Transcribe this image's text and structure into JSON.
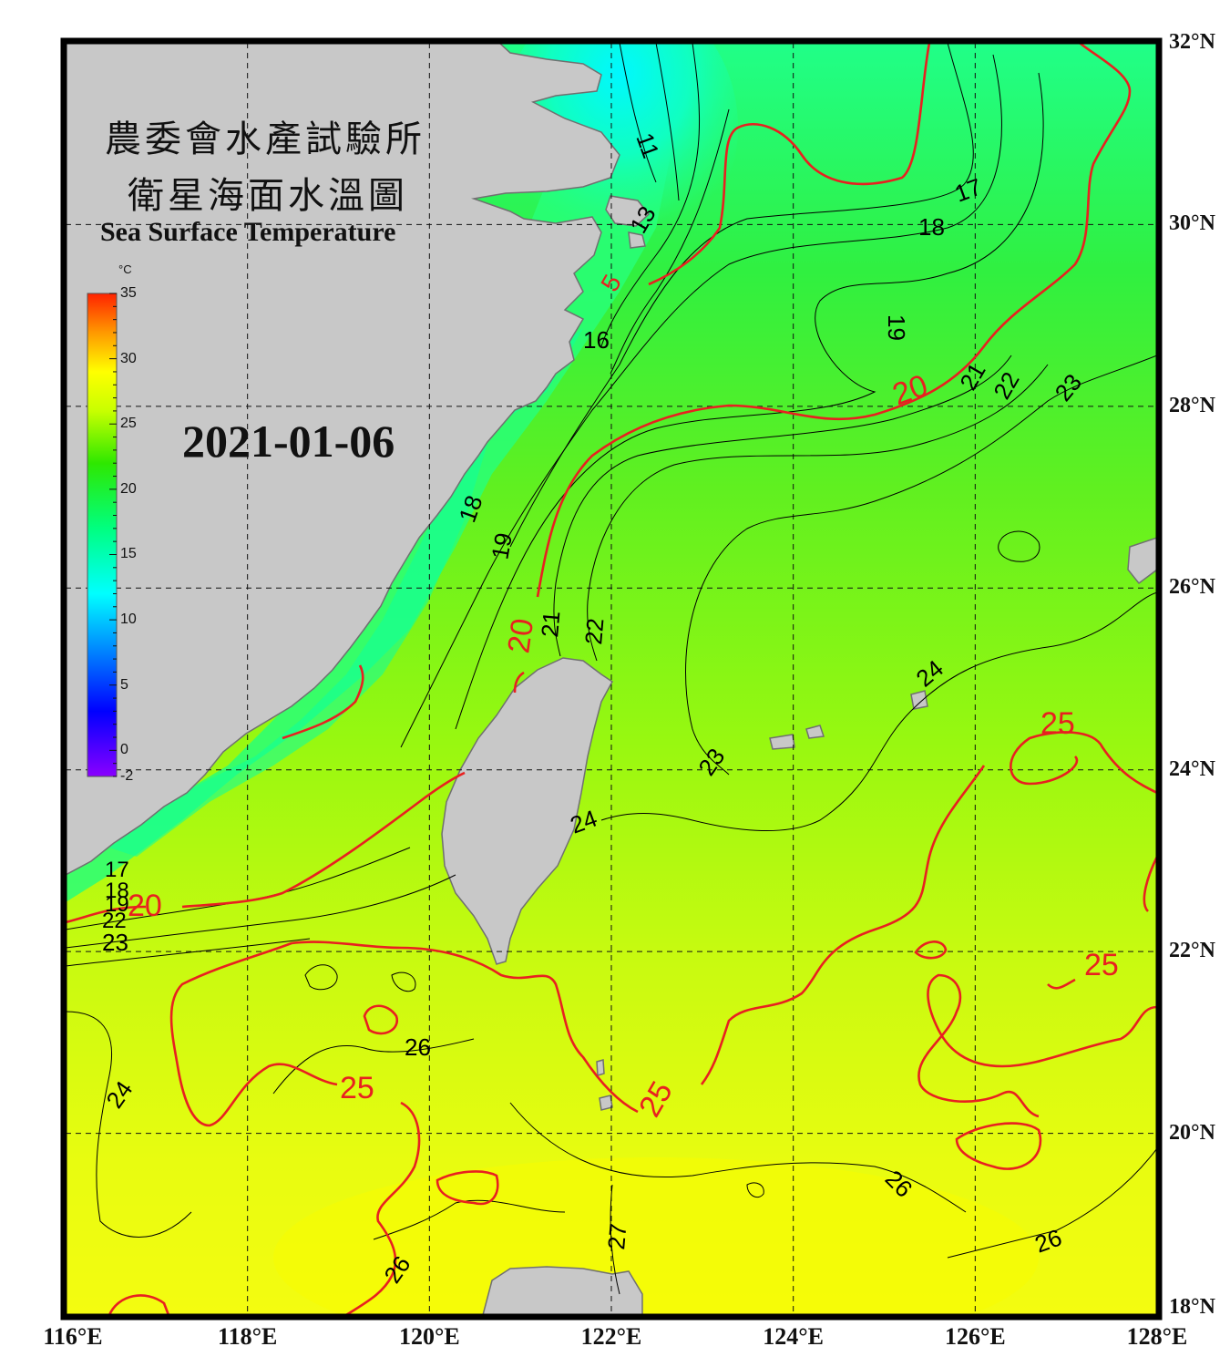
{
  "title": {
    "line1": "農委會水產試驗所",
    "line2": "衛星海面水溫圖",
    "english": "Sea Surface Temperature"
  },
  "date": "2021-01-06",
  "colorbar": {
    "unit": "°C",
    "min": -2,
    "max": 35,
    "ticks": [
      "35",
      "30",
      "25",
      "20",
      "15",
      "10",
      "5",
      "0",
      "-2"
    ],
    "stops": [
      {
        "v": -2,
        "color": "#8a00ff"
      },
      {
        "v": 3,
        "color": "#0000ff"
      },
      {
        "v": 8,
        "color": "#0090ff"
      },
      {
        "v": 12,
        "color": "#00ffff"
      },
      {
        "v": 17,
        "color": "#00ff80"
      },
      {
        "v": 22,
        "color": "#2ee800"
      },
      {
        "v": 26,
        "color": "#c8ff00"
      },
      {
        "v": 29,
        "color": "#ffff00"
      },
      {
        "v": 32,
        "color": "#ff9900"
      },
      {
        "v": 35,
        "color": "#ff2200"
      }
    ]
  },
  "axes": {
    "lon_labels": [
      "116°E",
      "118°E",
      "120°E",
      "122°E",
      "124°E",
      "126°E",
      "128°E"
    ],
    "lat_labels": [
      "32°N",
      "30°N",
      "28°N",
      "26°N",
      "24°N",
      "22°N",
      "20°N",
      "18°N"
    ],
    "lon_range": [
      116,
      128
    ],
    "lat_range": [
      18,
      32
    ],
    "grid_lines": "dashed",
    "grid_lons": [
      118,
      120,
      122,
      124,
      126
    ],
    "grid_lats": [
      30,
      28,
      26,
      24,
      22,
      20
    ]
  },
  "colors": {
    "land": "#c8c8c8",
    "land_outline": "#707070",
    "isotherm_major": "#e82020",
    "isotherm_minor": "#000000",
    "frame": "#000000"
  },
  "contour_labels": {
    "red": [
      "5",
      "20",
      "20",
      "20",
      "25",
      "25",
      "25",
      "25"
    ],
    "black": [
      "11",
      "13",
      "16",
      "17",
      "18",
      "19",
      "17",
      "18",
      "19",
      "21",
      "22",
      "23",
      "18",
      "19",
      "21",
      "22",
      "24",
      "23",
      "24",
      "26",
      "24",
      "26",
      "27",
      "26",
      "26",
      "17",
      "18",
      "19",
      "22",
      "23"
    ]
  }
}
